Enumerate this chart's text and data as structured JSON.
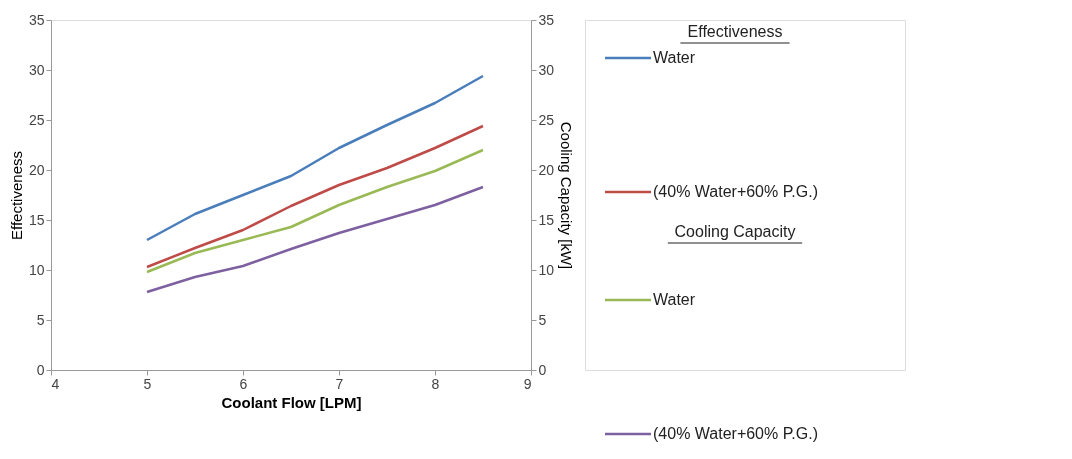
{
  "chart_data": {
    "type": "line",
    "xlabel": "Coolant Flow [LPM]",
    "ylabel": "Effectiveness",
    "y2label": "Cooling Capacity [kW]",
    "legend_title": "Effectiveness",
    "annotations": [
      "Cooling Capacity"
    ],
    "x": [
      5,
      5.5,
      6,
      6.5,
      7,
      7.5,
      8,
      8.5
    ],
    "xlim": [
      4,
      9
    ],
    "xticks": [
      4,
      5,
      6,
      7,
      8,
      9
    ],
    "ylim": [
      0,
      35
    ],
    "yticks": [
      0,
      5,
      10,
      15,
      20,
      25,
      30,
      35
    ],
    "y2lim": [
      0,
      35
    ],
    "y2ticks": [
      0,
      5,
      10,
      15,
      20,
      25,
      30,
      35
    ],
    "grid": false,
    "legend": "right",
    "marker": "none",
    "line_style": "solid",
    "series": [
      {
        "name": "Water",
        "color": "#4a7ebb",
        "axis": "y",
        "values": [
          13.0,
          15.6,
          17.5,
          19.4,
          22.2,
          24.5,
          26.7,
          29.4
        ]
      },
      {
        "name": "(40% Water+60% P.G.)",
        "color": "#be4b48",
        "axis": "y",
        "values": [
          10.3,
          12.2,
          14.0,
          16.4,
          18.5,
          20.2,
          22.2,
          24.4
        ]
      },
      {
        "name": "Water",
        "color": "#98b954",
        "axis": "y2",
        "values": [
          9.8,
          11.7,
          13.0,
          14.3,
          16.5,
          18.3,
          19.9,
          22.0
        ]
      },
      {
        "name": "(40% Water+60% P.G.)",
        "color": "#7d60a0",
        "axis": "y2",
        "values": [
          7.8,
          9.3,
          10.4,
          12.1,
          13.7,
          15.1,
          16.5,
          18.3
        ]
      }
    ]
  }
}
